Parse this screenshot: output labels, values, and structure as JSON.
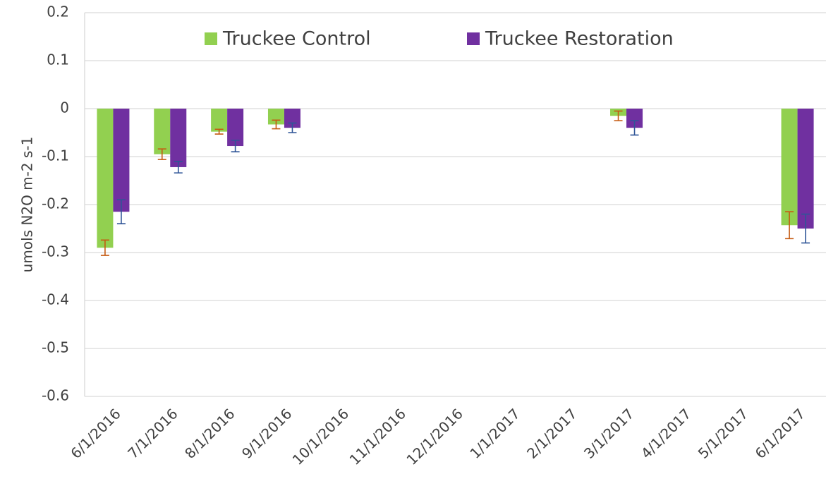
{
  "chart_data": {
    "type": "bar",
    "y_label": "umols N2O m-2 s-1",
    "categories": [
      "6/1/2016",
      "7/1/2016",
      "8/1/2016",
      "9/1/2016",
      "10/1/2016",
      "11/1/2016",
      "12/1/2016",
      "1/1/2017",
      "2/1/2017",
      "3/1/2017",
      "4/1/2017",
      "5/1/2017",
      "6/1/2017"
    ],
    "series": [
      {
        "name": "Truckee Control",
        "color": "#92d050",
        "error_color": "#c55a11",
        "values": [
          -0.29,
          -0.095,
          -0.048,
          -0.033,
          null,
          null,
          null,
          null,
          null,
          -0.015,
          null,
          null,
          -0.243
        ],
        "errors": [
          0.016,
          0.011,
          0.005,
          0.009,
          null,
          null,
          null,
          null,
          null,
          0.01,
          null,
          null,
          0.028
        ]
      },
      {
        "name": "Truckee Restoration",
        "color": "#7030a0",
        "error_color": "#2f5597",
        "values": [
          -0.215,
          -0.122,
          -0.078,
          -0.04,
          null,
          null,
          null,
          null,
          null,
          -0.04,
          null,
          null,
          -0.25
        ],
        "errors": [
          0.025,
          0.012,
          0.012,
          0.01,
          null,
          null,
          null,
          null,
          null,
          0.015,
          null,
          null,
          0.03
        ]
      }
    ],
    "ylim": [
      -0.6,
      0.2
    ],
    "yticks": [
      0.2,
      0.1,
      0,
      -0.1,
      -0.2,
      -0.3,
      -0.4,
      -0.5,
      -0.6
    ],
    "grid": true,
    "legend": "top"
  }
}
